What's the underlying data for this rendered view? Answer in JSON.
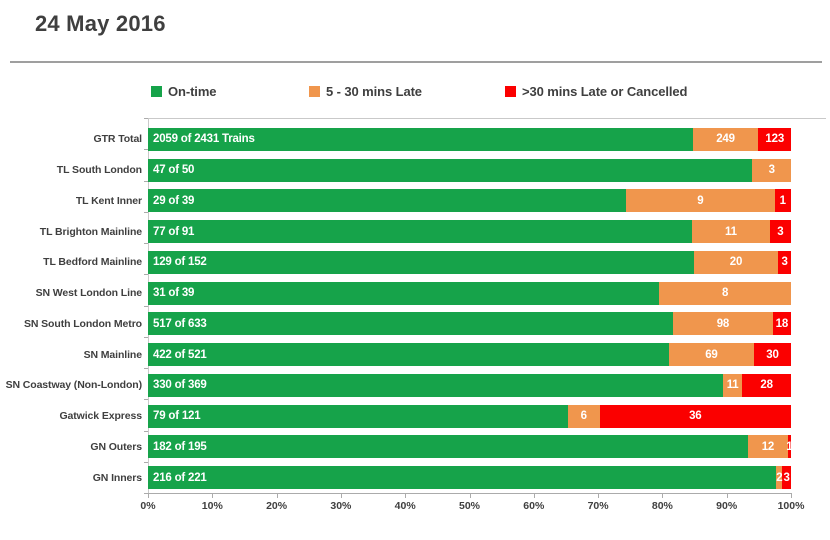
{
  "title": "24 May 2016",
  "legend": {
    "items": [
      {
        "label": "On-time",
        "color": "#16A34A"
      },
      {
        "label": "5 - 30 mins Late",
        "color": "#F0964D"
      },
      {
        "label": ">30 mins Late or Cancelled",
        "color": "#FB0000"
      }
    ]
  },
  "chart_data": {
    "type": "bar",
    "orientation": "horizontal-stacked",
    "title": "24 May 2016",
    "legend_position": "top",
    "grid": false,
    "xlim": [
      0,
      100
    ],
    "x_ticks": [
      "0%",
      "10%",
      "20%",
      "30%",
      "40%",
      "50%",
      "60%",
      "70%",
      "80%",
      "90%",
      "100%"
    ],
    "categories": [
      "GTR Total",
      "TL South London",
      "TL Kent Inner",
      "TL Brighton Mainline",
      "TL Bedford Mainline",
      "SN West London Line",
      "SN South London Metro",
      "SN Mainline",
      "SN Coastway (Non-London)",
      "Gatwick Express",
      "GN Outers",
      "GN Inners"
    ],
    "totals": [
      2431,
      50,
      39,
      91,
      152,
      39,
      633,
      521,
      369,
      121,
      195,
      221
    ],
    "bar_labels": [
      "2059 of 2431 Trains",
      "47 of 50",
      "29 of 39",
      "77 of 91",
      "129 of 152",
      "31 of 39",
      "517 of 633",
      "422 of 521",
      "330 of 369",
      "79 of 121",
      "182 of 195",
      "216 of 221"
    ],
    "series": [
      {
        "name": "On-time",
        "color": "#16A34A",
        "values": [
          2059,
          47,
          29,
          77,
          129,
          31,
          517,
          422,
          330,
          79,
          182,
          216
        ]
      },
      {
        "name": "5 - 30 mins Late",
        "color": "#F0964D",
        "values": [
          249,
          3,
          9,
          11,
          20,
          8,
          98,
          69,
          11,
          6,
          12,
          2
        ]
      },
      {
        "name": ">30 mins Late or Cancelled",
        "color": "#FB0000",
        "values": [
          123,
          0,
          1,
          3,
          3,
          0,
          18,
          30,
          28,
          36,
          1,
          3
        ]
      }
    ],
    "axis_text_color": "#3f3f3f"
  }
}
